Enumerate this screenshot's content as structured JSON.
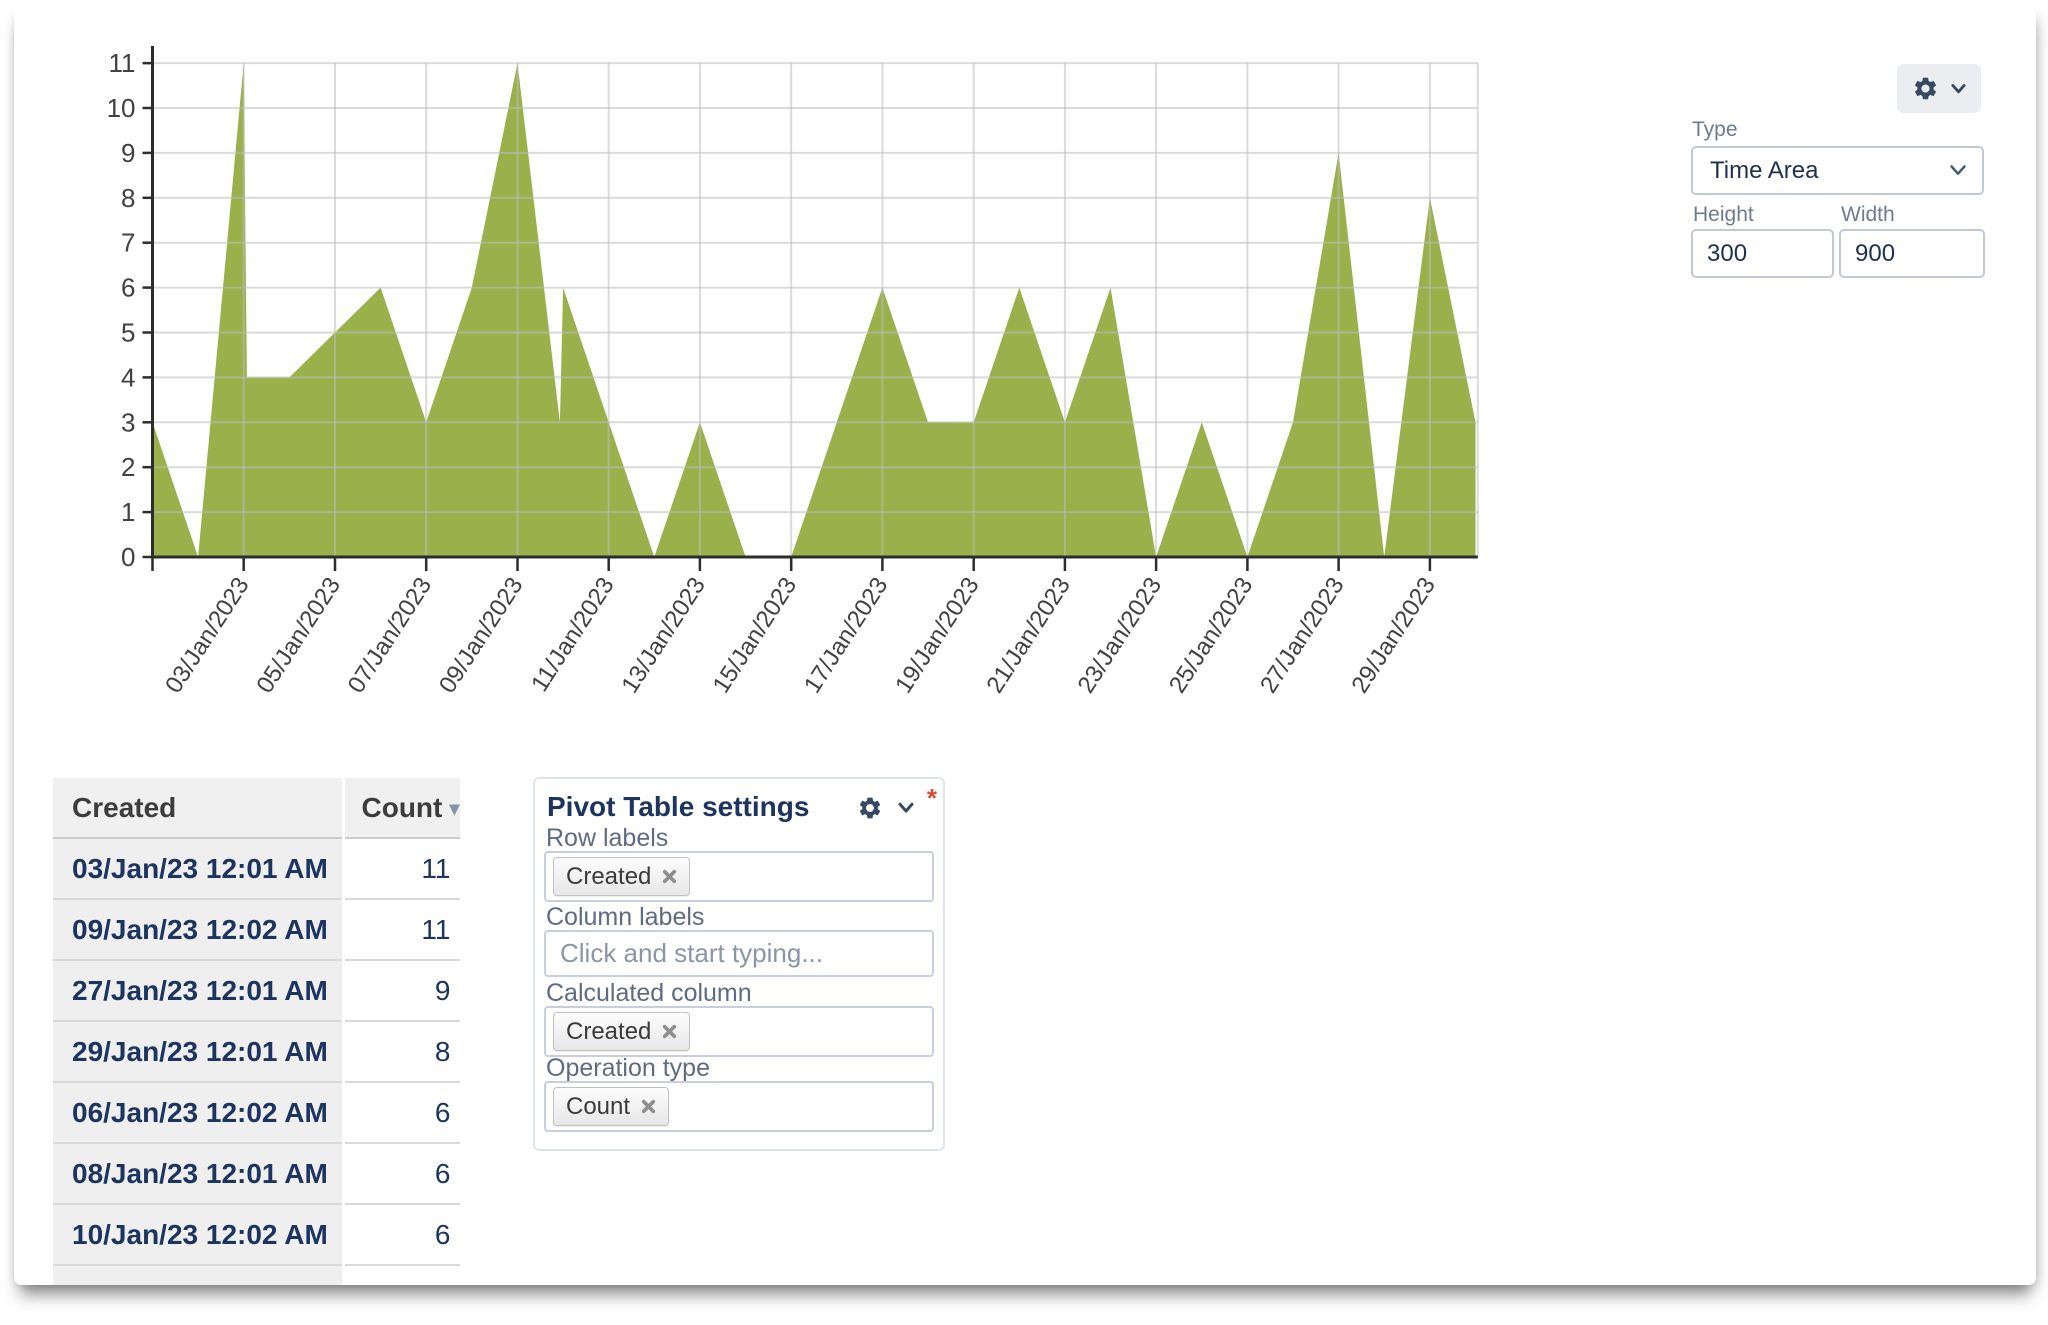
{
  "chart_data": {
    "type": "area",
    "title": "",
    "xlabel": "",
    "ylabel": "",
    "series": [
      {
        "name": "Count",
        "points": [
          [
            1,
            3
          ],
          [
            2,
            0
          ],
          [
            3,
            11
          ],
          [
            3.07,
            4
          ],
          [
            4,
            4
          ],
          [
            5,
            5
          ],
          [
            6,
            6
          ],
          [
            7,
            3
          ],
          [
            8,
            6
          ],
          [
            9,
            11
          ],
          [
            9.93,
            3
          ],
          [
            10,
            6
          ],
          [
            11,
            3
          ],
          [
            12,
            0
          ],
          [
            13,
            3
          ],
          [
            14,
            0
          ],
          [
            15,
            0
          ],
          [
            16,
            3
          ],
          [
            17,
            6
          ],
          [
            18,
            3
          ],
          [
            19,
            3
          ],
          [
            20,
            6
          ],
          [
            21,
            3
          ],
          [
            22,
            6
          ],
          [
            23,
            0
          ],
          [
            24,
            3
          ],
          [
            25,
            0
          ],
          [
            26,
            3
          ],
          [
            27,
            9
          ],
          [
            28,
            0
          ],
          [
            29,
            8
          ],
          [
            30,
            3
          ]
        ]
      }
    ],
    "x_axis": {
      "tick_days": [
        1,
        3,
        5,
        7,
        9,
        11,
        13,
        15,
        17,
        19,
        21,
        23,
        25,
        27,
        29
      ],
      "tick_labels": [
        "",
        "03/Jan/2023",
        "05/Jan/2023",
        "07/Jan/2023",
        "09/Jan/2023",
        "11/Jan/2023",
        "13/Jan/2023",
        "15/Jan/2023",
        "17/Jan/2023",
        "19/Jan/2023",
        "21/Jan/2023",
        "23/Jan/2023",
        "25/Jan/2023",
        "27/Jan/2023",
        "29/Jan/2023"
      ],
      "right_edge_day": 30.05
    },
    "y_axis": {
      "min": 0,
      "max": 11,
      "ticks": [
        0,
        1,
        2,
        3,
        4,
        5,
        6,
        7,
        8,
        9,
        10,
        11
      ]
    },
    "grid": true,
    "legend": false,
    "colors": {
      "area": "#9ab04a",
      "grid": "#bebebe",
      "axis": "#2d2d2d",
      "labels": "#414141"
    }
  },
  "controls": {
    "type_label": "Type",
    "type_value": "Time Area",
    "height_label": "Height",
    "height_value": "300",
    "width_label": "Width",
    "width_value": "900"
  },
  "table": {
    "columns": [
      {
        "label": "Created"
      },
      {
        "label": "Count",
        "sort_icon": "▾"
      }
    ],
    "rows": [
      [
        "03/Jan/23 12:01 AM",
        "11"
      ],
      [
        "09/Jan/23 12:02 AM",
        "11"
      ],
      [
        "27/Jan/23 12:01 AM",
        "9"
      ],
      [
        "29/Jan/23 12:01 AM",
        "8"
      ],
      [
        "06/Jan/23 12:02 AM",
        "6"
      ],
      [
        "08/Jan/23 12:01 AM",
        "6"
      ],
      [
        "10/Jan/23 12:02 AM",
        "6"
      ]
    ]
  },
  "pivot": {
    "title": "Pivot Table settings",
    "required_marker": "*",
    "fields": [
      {
        "label": "Row labels",
        "chips": [
          "Created"
        ]
      },
      {
        "label": "Column labels",
        "placeholder": "Click and start typing..."
      },
      {
        "label": "Calculated column",
        "chips": [
          "Created"
        ]
      },
      {
        "label": "Operation type",
        "chips": [
          "Count"
        ]
      }
    ]
  },
  "icons": {
    "gear": "gear-icon",
    "chevron_down": "chevron-down-icon",
    "sort_desc": "▾",
    "chip_remove": "x-icon",
    "required": "*"
  }
}
